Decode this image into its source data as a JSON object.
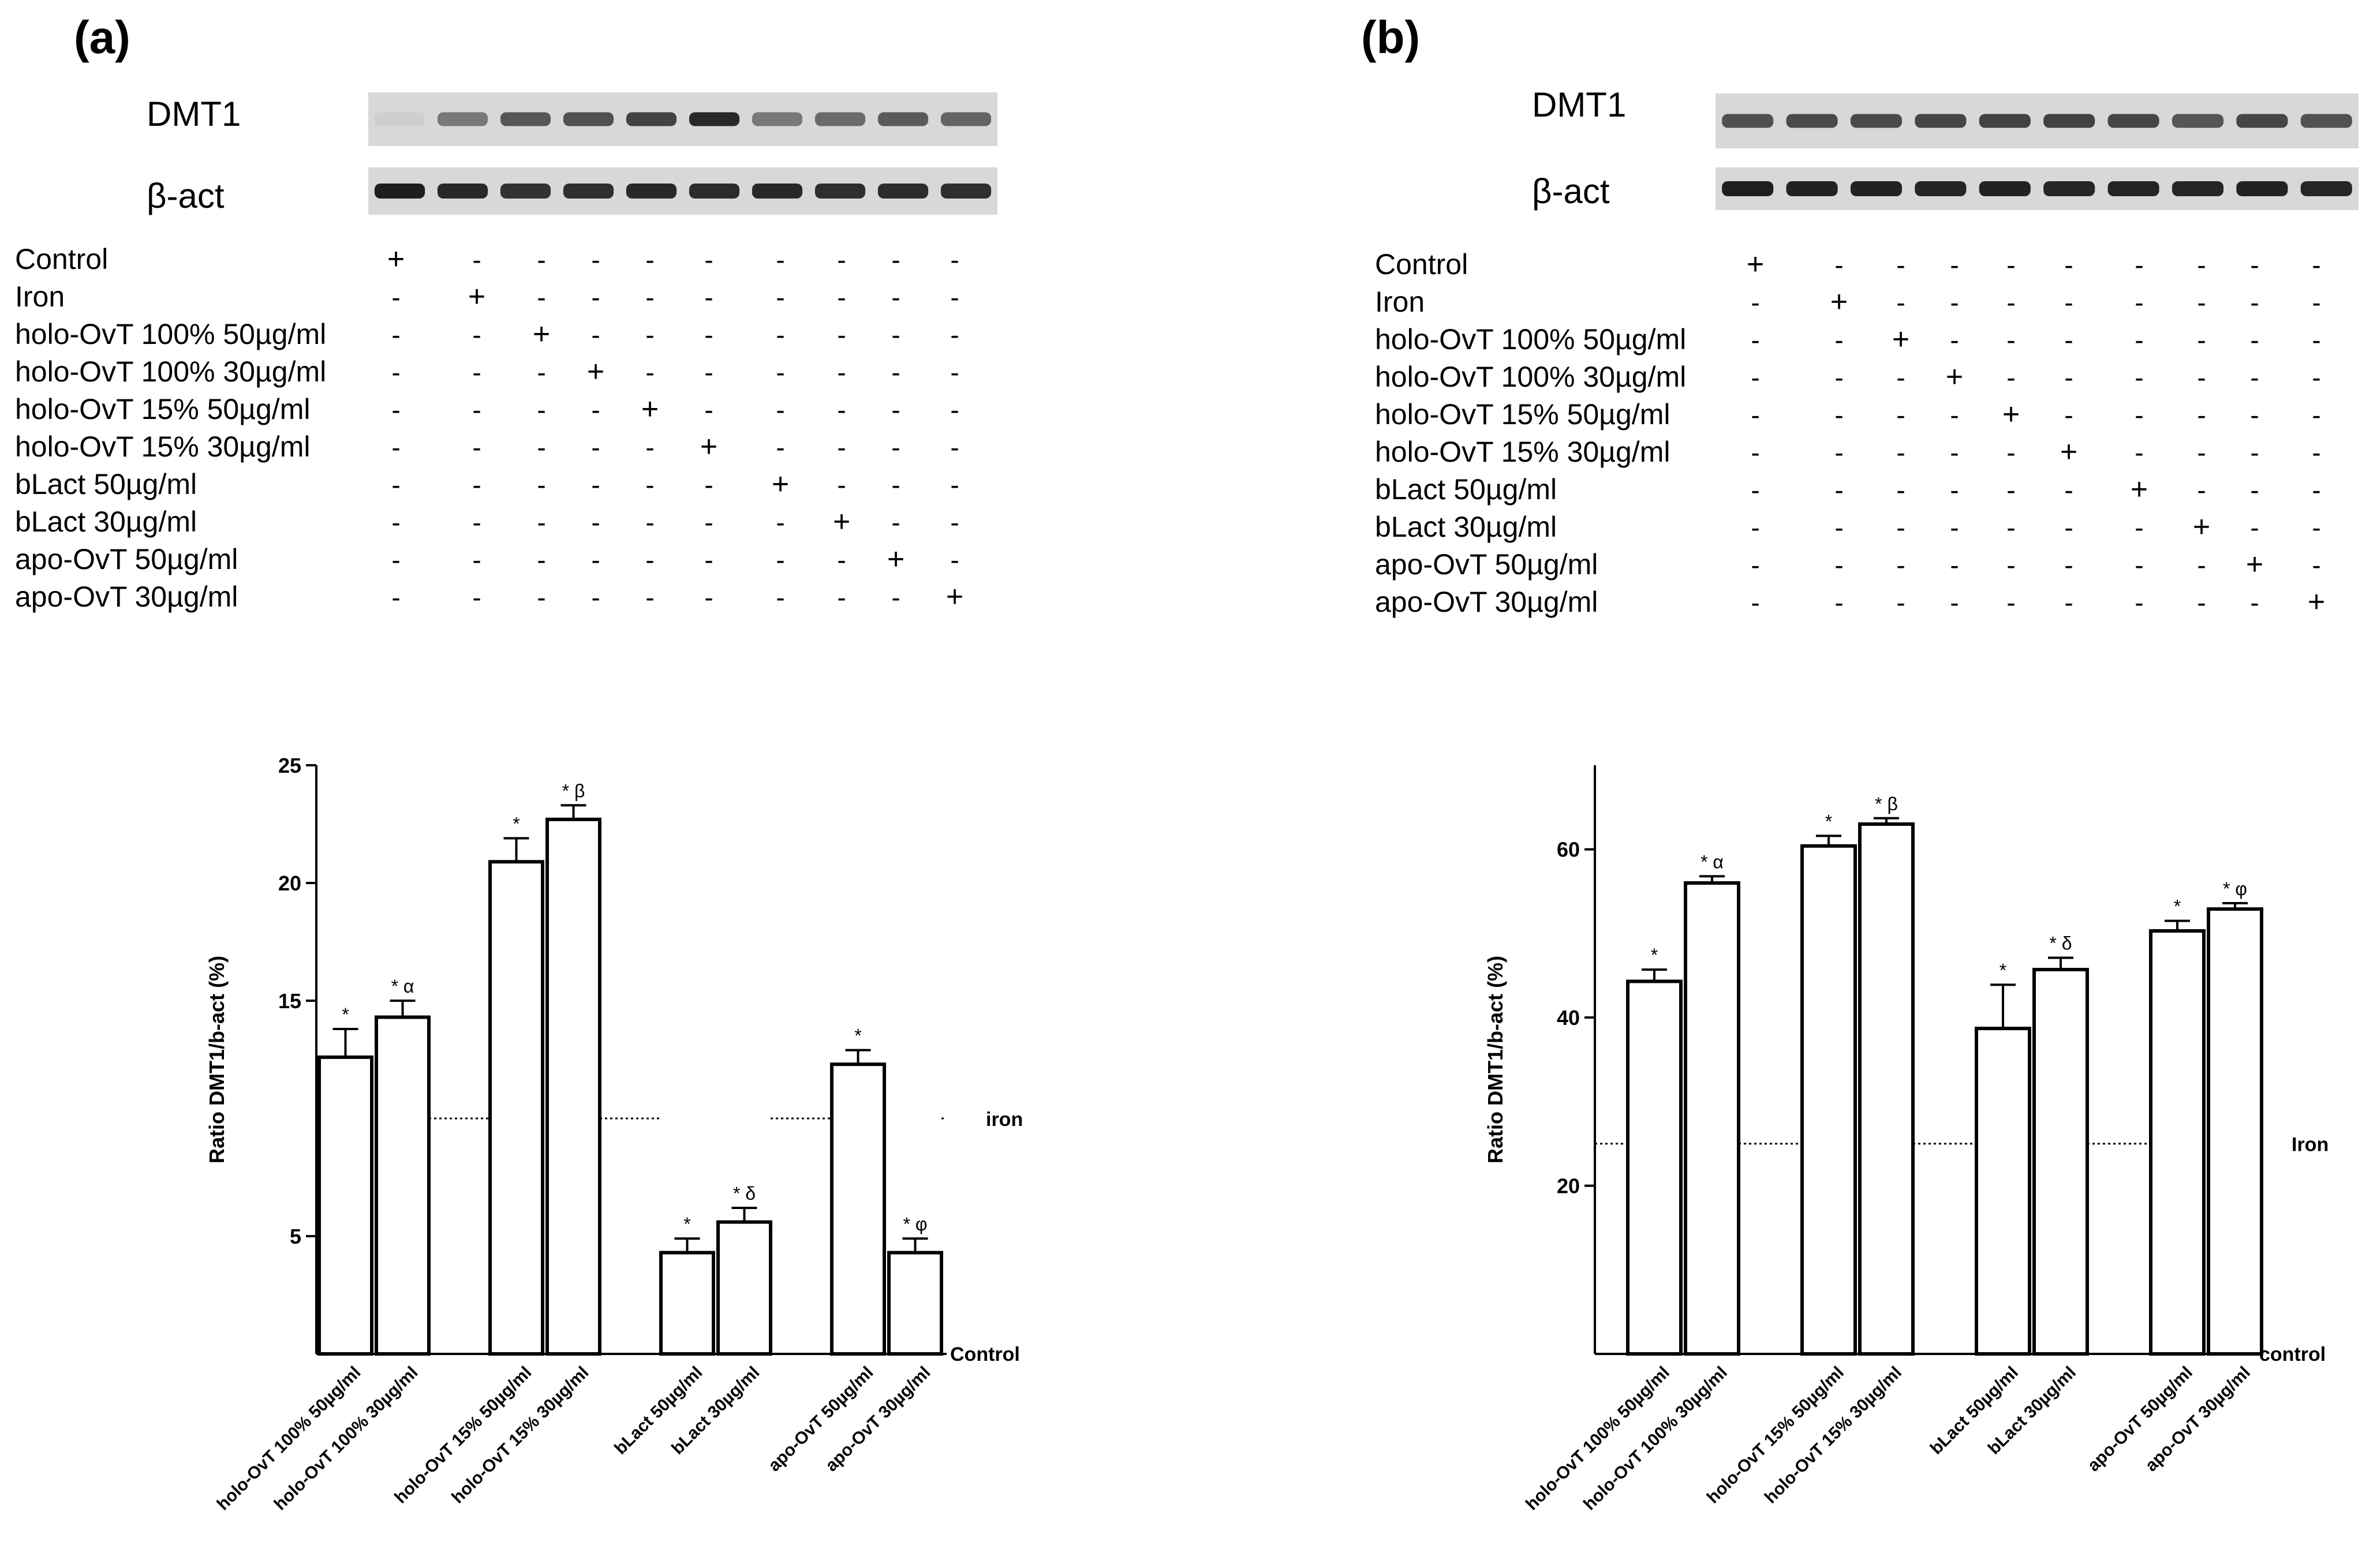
{
  "conditions": [
    "Control",
    "Iron",
    "holo-OvT 100% 50µg/ml",
    "holo-OvT 100% 30µg/ml",
    "holo-OvT 15% 50µg/ml",
    "holo-OvT 15% 30µg/ml",
    "bLact 50µg/ml",
    "bLact 30µg/ml",
    "apo-OvT 50µg/ml",
    "apo-OvT 30µg/ml"
  ],
  "symbols": {
    "plus": "+",
    "minus": "-"
  },
  "colors": {
    "bar_fill": "#ffffff",
    "stroke": "#000000",
    "blot_bg": "#d8d8d8",
    "band": "#262626"
  },
  "panels": [
    {
      "panel_label": "(a)",
      "blot_labels": {
        "dmt1": "DMT1",
        "bact": "β-act"
      },
      "dmt1_band_intensity": [
        0.12,
        0.55,
        0.72,
        0.75,
        0.82,
        0.95,
        0.55,
        0.62,
        0.7,
        0.65
      ],
      "bact_band_intensity": [
        1,
        0.95,
        0.9,
        0.92,
        0.95,
        0.93,
        0.95,
        0.92,
        0.93,
        0.92
      ]
    },
    {
      "panel_label": "(b)",
      "blot_labels": {
        "dmt1": "DMT1",
        "bact": "β-act"
      },
      "dmt1_band_intensity": [
        0.75,
        0.78,
        0.78,
        0.8,
        0.82,
        0.82,
        0.8,
        0.72,
        0.8,
        0.74
      ],
      "bact_band_intensity": [
        1,
        0.98,
        0.98,
        0.97,
        0.98,
        0.96,
        0.97,
        0.96,
        0.98,
        0.96
      ]
    }
  ],
  "chart_data": [
    {
      "type": "bar",
      "title": "",
      "xlabel": "",
      "ylabel": "Ratio DMT1/b-act (%)",
      "ylim": [
        0,
        25
      ],
      "yticks": [
        5,
        15,
        20,
        25
      ],
      "categories": [
        "holo-OvT 100% 50µg/ml",
        "holo-OvT 100% 30µg/ml",
        "holo-OvT 15% 50µg/ml",
        "holo-OvT 15% 30µg/ml",
        "bLact 50µg/ml",
        "bLact 30µg/ml",
        "apo-OvT 50µg/ml",
        "apo-OvT 30µg/ml"
      ],
      "values": [
        12.6,
        14.3,
        20.9,
        22.7,
        4.3,
        5.6,
        12.3,
        4.3
      ],
      "errors": [
        1.2,
        0.7,
        1.0,
        0.6,
        0.6,
        0.6,
        0.6,
        0.6
      ],
      "annotations": [
        "*",
        "* α",
        "*",
        "* β",
        "*",
        "* δ",
        "*",
        "* φ"
      ],
      "reference_lines": [
        {
          "label": "iron",
          "y": 10,
          "style": "dotted"
        },
        {
          "label": "Control",
          "y": 0,
          "style": "axis"
        }
      ]
    },
    {
      "type": "bar",
      "title": "",
      "xlabel": "",
      "ylabel": "Ratio DMT1/b-act (%)",
      "ylim": [
        0,
        70
      ],
      "yticks": [
        20,
        40,
        60
      ],
      "categories": [
        "holo-OvT 100% 50µg/ml",
        "holo-OvT 100% 30µg/ml",
        "holo-OvT 15% 50µg/ml",
        "holo-OvT 15% 30µg/ml",
        "bLact 50µg/ml",
        "bLact 30µg/ml",
        "apo-OvT 50µg/ml",
        "apo-OvT 30µg/ml"
      ],
      "values": [
        44.3,
        56.0,
        60.4,
        63.0,
        38.7,
        45.7,
        50.3,
        52.9
      ],
      "errors": [
        1.4,
        0.8,
        1.2,
        0.7,
        5.2,
        1.4,
        1.2,
        0.7
      ],
      "annotations": [
        "*",
        "* α",
        "*",
        "* β",
        "*",
        "* δ",
        "*",
        "* φ"
      ],
      "reference_lines": [
        {
          "label": "Iron",
          "y": 25,
          "style": "dotted"
        },
        {
          "label": "control",
          "y": 0,
          "style": "axis"
        }
      ]
    }
  ]
}
